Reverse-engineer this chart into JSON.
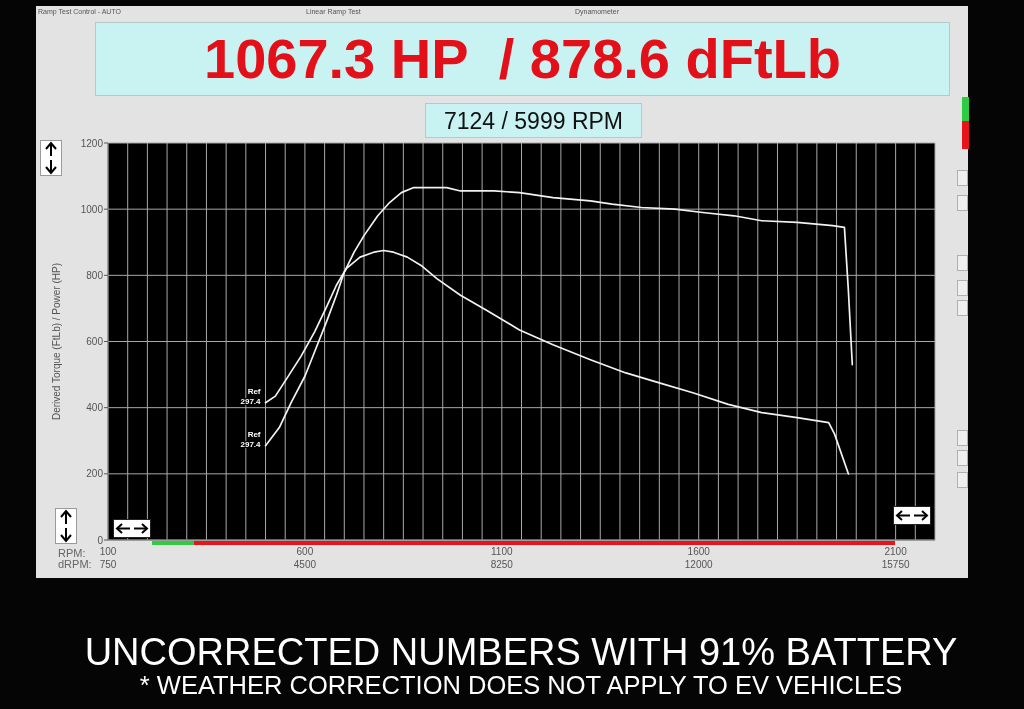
{
  "chart_data": {
    "type": "line",
    "title": "1067.3 HP  / 878.6 dFtLb",
    "subtitle": "7124 / 5999 RPM",
    "xlabel": "RPM:",
    "x2label": "dRPM:",
    "ylabel": "Derived Torque (FtLb) / Power (HP)",
    "xlim": [
      100,
      2200
    ],
    "xticks": [
      100,
      {
        "value": 150,
        "label": null
      },
      {
        "value": 200,
        "label": null
      },
      {
        "value": 250,
        "label": null
      },
      {
        "value": 300,
        "label": null
      },
      {
        "value": 350,
        "label": null
      },
      {
        "value": 400,
        "label": null
      },
      {
        "value": 450,
        "label": null
      },
      {
        "value": 500,
        "label": null
      },
      {
        "value": 550,
        "label": null
      },
      600,
      {
        "value": 650,
        "label": null
      },
      {
        "value": 700,
        "label": null
      },
      {
        "value": 750,
        "label": null
      },
      {
        "value": 800,
        "label": null
      },
      {
        "value": 850,
        "label": null
      },
      {
        "value": 900,
        "label": null
      },
      {
        "value": 950,
        "label": null
      },
      {
        "value": 1000,
        "label": null
      },
      {
        "value": 1050,
        "label": null
      },
      1100,
      {
        "value": 1150,
        "label": null
      },
      {
        "value": 1200,
        "label": null
      },
      {
        "value": 1250,
        "label": null
      },
      {
        "value": 1300,
        "label": null
      },
      {
        "value": 1350,
        "label": null
      },
      {
        "value": 1400,
        "label": null
      },
      {
        "value": 1450,
        "label": null
      },
      {
        "value": 1500,
        "label": null
      },
      {
        "value": 1550,
        "label": null
      },
      1600,
      {
        "value": 1650,
        "label": null
      },
      {
        "value": 1700,
        "label": null
      },
      {
        "value": 1750,
        "label": null
      },
      {
        "value": 1800,
        "label": null
      },
      {
        "value": 1850,
        "label": null
      },
      {
        "value": 1900,
        "label": null
      },
      {
        "value": 1950,
        "label": null
      },
      {
        "value": 2000,
        "label": null
      },
      {
        "value": 2050,
        "label": null
      },
      2100,
      {
        "value": 2150,
        "label": null
      },
      {
        "value": 2200,
        "label": null
      }
    ],
    "x2lim": [
      750,
      16500
    ],
    "x2ticks": [
      750,
      4500,
      8250,
      12000,
      15750
    ],
    "ylim": [
      0,
      1200
    ],
    "yticks": [
      0,
      200,
      400,
      600,
      800,
      1000,
      1200
    ],
    "grid": true,
    "series": [
      {
        "color": "#f2f2f2",
        "x": [
          500,
          535,
          565,
          600,
          630,
          655,
          680,
          700,
          725,
          750,
          785,
          815,
          845,
          875,
          925,
          960,
          995,
          1030,
          1080,
          1145,
          1230,
          1325,
          1380,
          1455,
          1540,
          1610,
          1690,
          1760,
          1850,
          1940,
          1970,
          1980,
          1990
        ],
        "values": [
          285,
          340,
          415,
          495,
          585,
          660,
          740,
          810,
          870,
          920,
          980,
          1020,
          1050,
          1065,
          1065,
          1065,
          1055,
          1055,
          1055,
          1050,
          1035,
          1025,
          1015,
          1005,
          1000,
          990,
          980,
          965,
          960,
          950,
          945,
          755,
          530
        ]
      },
      {
        "color": "#f2f2f2",
        "x": [
          500,
          525,
          555,
          590,
          625,
          655,
          680,
          705,
          740,
          775,
          800,
          825,
          860,
          895,
          935,
          995,
          1060,
          1145,
          1230,
          1325,
          1415,
          1500,
          1585,
          1675,
          1760,
          1850,
          1930,
          1945,
          1980
        ],
        "values": [
          415,
          435,
          490,
          555,
          630,
          705,
          770,
          820,
          855,
          870,
          875,
          870,
          855,
          830,
          790,
          740,
          695,
          635,
          590,
          545,
          505,
          475,
          445,
          410,
          385,
          370,
          355,
          320,
          200
        ]
      }
    ],
    "annotations": [
      "Ramp Test Control - AUTO",
      "Linear Ramp Test",
      "Dynamometer",
      "UNCORRECTED NUMBERS WITH 91% BATTERY",
      "* WEATHER CORRECTION DOES NOT APPLY TO EV VEHICLES",
      {
        "text": "Ref\n297.4",
        "x": 500,
        "y": 415
      },
      {
        "text": "Ref\n297.4",
        "x": 500,
        "y": 285
      }
    ]
  }
}
